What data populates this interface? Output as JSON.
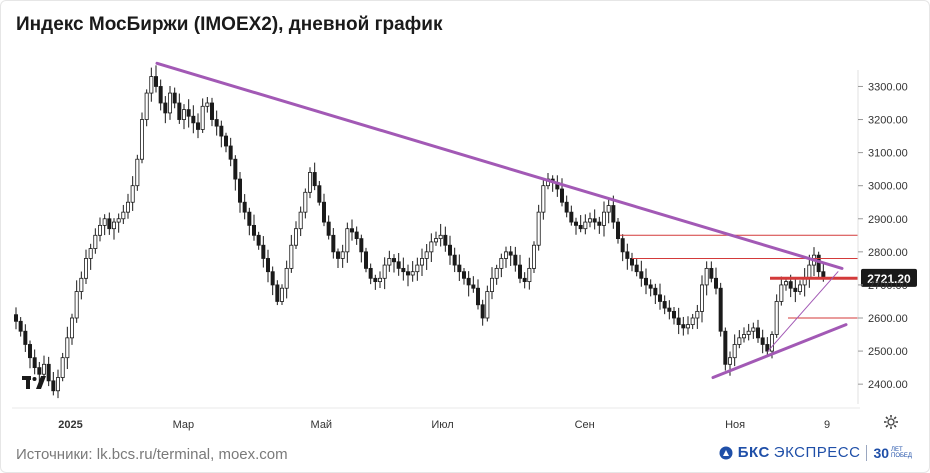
{
  "title": "Индекс МосБиржи (IMOEX2), дневной график",
  "source": "Источники: lk.bcs.ru/terminal, moex.com",
  "brand": {
    "bks": "БКС",
    "exp": "ЭКСПРЕСС",
    "years": "30",
    "years_sub_1": "ЛЕТ",
    "years_sub_2": "ПОБЕД"
  },
  "icons": [
    "tradingview-logo-icon",
    "gear-icon",
    "brand-icon"
  ],
  "colors": {
    "up": "#1a1a1a",
    "trendline": "#a259b5",
    "level": "#d33a3a",
    "price_label_bg": "#1a1a1a"
  },
  "chart_data": {
    "type": "candlestick",
    "title": "Индекс МосБиржи (IMOEX2), дневной график",
    "ylim": [
      2340,
      3380
    ],
    "yticks": [
      2400,
      2500,
      2600,
      2700,
      2800,
      2900,
      3000,
      3100,
      3200,
      3300
    ],
    "ytick_labels": [
      "2400.00",
      "2500.00",
      "2600.00",
      "2700.00",
      "2800.00",
      "2900.00",
      "3000.00",
      "3100.00",
      "3200.00",
      "3300.00"
    ],
    "x_ticks": [
      "2025",
      "Мар",
      "Май",
      "Июл",
      "Сен",
      "Ноя",
      "9"
    ],
    "last_price": "2721.20",
    "close_series": [
      2590,
      2560,
      2520,
      2480,
      2450,
      2430,
      2460,
      2410,
      2380,
      2420,
      2480,
      2540,
      2600,
      2680,
      2720,
      2780,
      2810,
      2850,
      2880,
      2900,
      2870,
      2890,
      2900,
      2920,
      2950,
      3000,
      3080,
      3200,
      3280,
      3330,
      3300,
      3250,
      3220,
      3280,
      3250,
      3200,
      3230,
      3210,
      3190,
      3170,
      3240,
      3250,
      3200,
      3180,
      3150,
      3120,
      3080,
      3020,
      2950,
      2920,
      2880,
      2850,
      2820,
      2780,
      2740,
      2700,
      2650,
      2690,
      2750,
      2820,
      2870,
      2920,
      2980,
      3040,
      3000,
      2950,
      2890,
      2850,
      2800,
      2780,
      2800,
      2870,
      2860,
      2840,
      2800,
      2750,
      2720,
      2710,
      2720,
      2760,
      2780,
      2770,
      2750,
      2740,
      2730,
      2740,
      2760,
      2780,
      2800,
      2830,
      2840,
      2850,
      2820,
      2790,
      2760,
      2740,
      2720,
      2700,
      2690,
      2640,
      2600,
      2680,
      2720,
      2750,
      2780,
      2800,
      2790,
      2760,
      2720,
      2710,
      2750,
      2820,
      2920,
      3000,
      3020,
      3010,
      2990,
      2950,
      2920,
      2890,
      2880,
      2870,
      2890,
      2900,
      2890,
      2880,
      2920,
      2940,
      2890,
      2840,
      2800,
      2780,
      2760,
      2740,
      2720,
      2700,
      2690,
      2670,
      2650,
      2630,
      2620,
      2600,
      2580,
      2570,
      2580,
      2600,
      2620,
      2700,
      2750,
      2720,
      2690,
      2560,
      2460,
      2480,
      2520,
      2540,
      2550,
      2560,
      2570,
      2540,
      2520,
      2500,
      2550,
      2650,
      2700,
      2710,
      2690,
      2680,
      2700,
      2720,
      2760,
      2790,
      2740,
      2721.2
    ],
    "trendlines": [
      {
        "from": [
          "Feb",
          3370
        ],
        "to": [
          "Dec",
          2750
        ],
        "label": "descending resistance"
      },
      {
        "from": [
          "Nov",
          2420
        ],
        "to": [
          "Dec",
          2580
        ],
        "label": "ascending support"
      },
      {
        "from": [
          "Nov",
          2500
        ],
        "to": [
          "Dec",
          2740
        ],
        "label": "thin support"
      }
    ],
    "levels": [
      2850,
      2780,
      2720,
      2600
    ],
    "grid": false
  }
}
